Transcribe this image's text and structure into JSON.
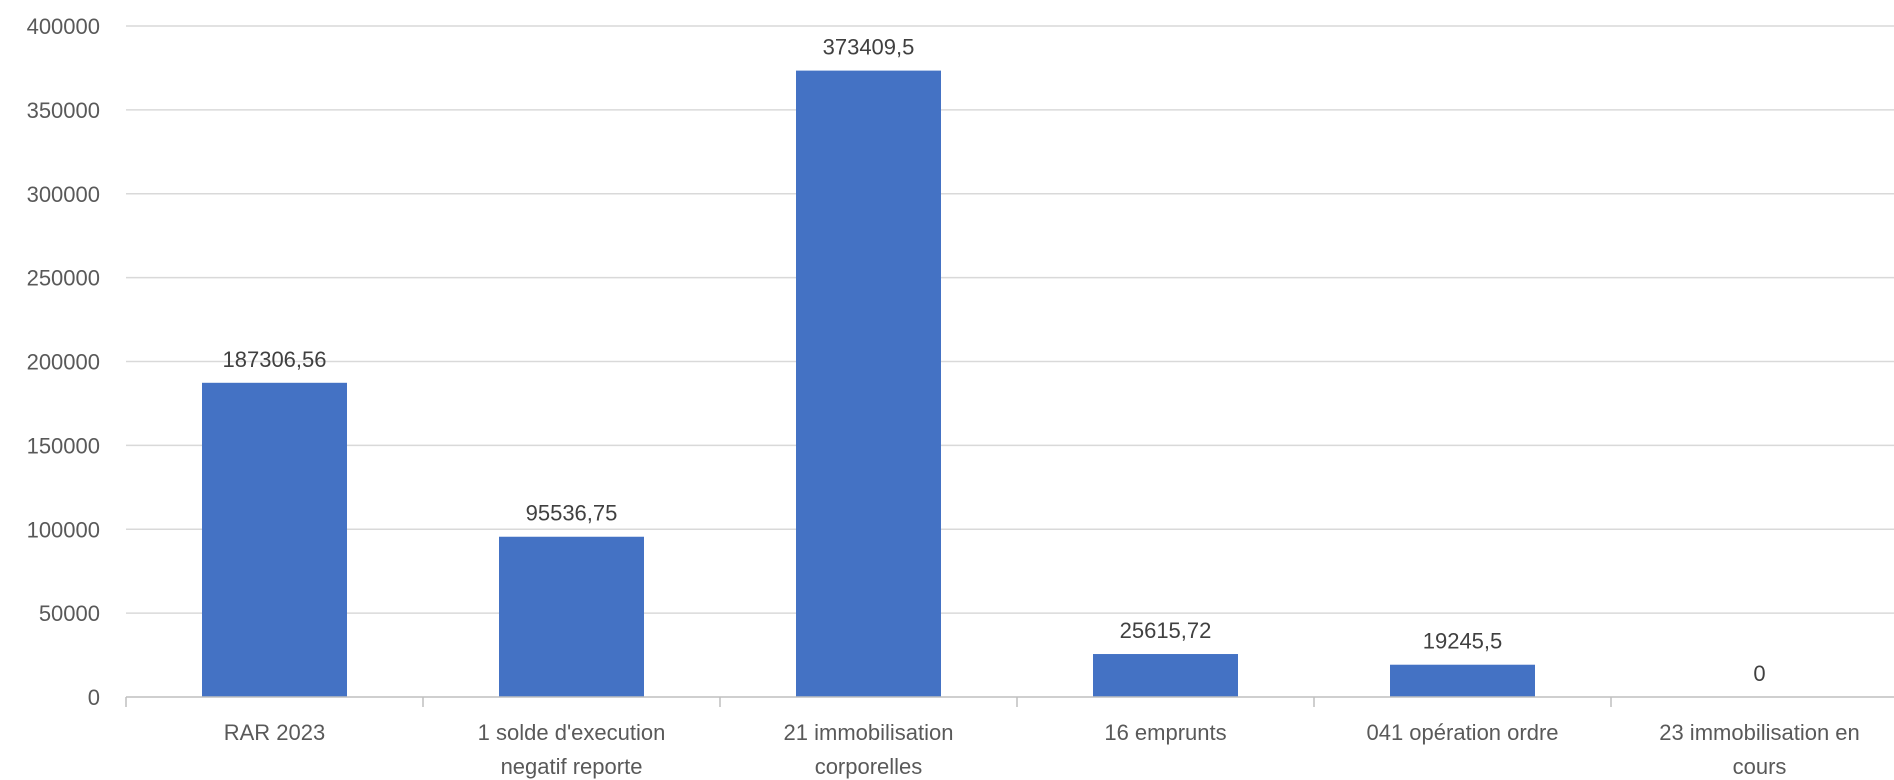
{
  "chart_data": {
    "type": "bar",
    "title": "",
    "xlabel": "",
    "ylabel": "",
    "categories": [
      [
        "RAR 2023"
      ],
      [
        "1 solde d'execution",
        "negatif reporte"
      ],
      [
        "21 immobilisation",
        "corporelles"
      ],
      [
        "16 emprunts"
      ],
      [
        "041 opération ordre"
      ],
      [
        "23 immobilisation en",
        "cours"
      ]
    ],
    "values": [
      187306.56,
      95536.75,
      373409.5,
      25615.72,
      19245.5,
      0
    ],
    "data_labels": [
      "187306,56",
      "95536,75",
      "373409,5",
      "25615,72",
      "19245,5",
      "0"
    ],
    "ylim": [
      0,
      400000
    ],
    "yticks": [
      0,
      50000,
      100000,
      150000,
      200000,
      250000,
      300000,
      350000,
      400000
    ],
    "ytick_labels": [
      "0",
      "50000",
      "100000",
      "150000",
      "200000",
      "250000",
      "300000",
      "350000",
      "400000"
    ],
    "grid": true,
    "legend": "none",
    "colors": {
      "bar": "#4472C4",
      "grid": "#D9D9D9",
      "axis": "#BFBFBF"
    }
  }
}
